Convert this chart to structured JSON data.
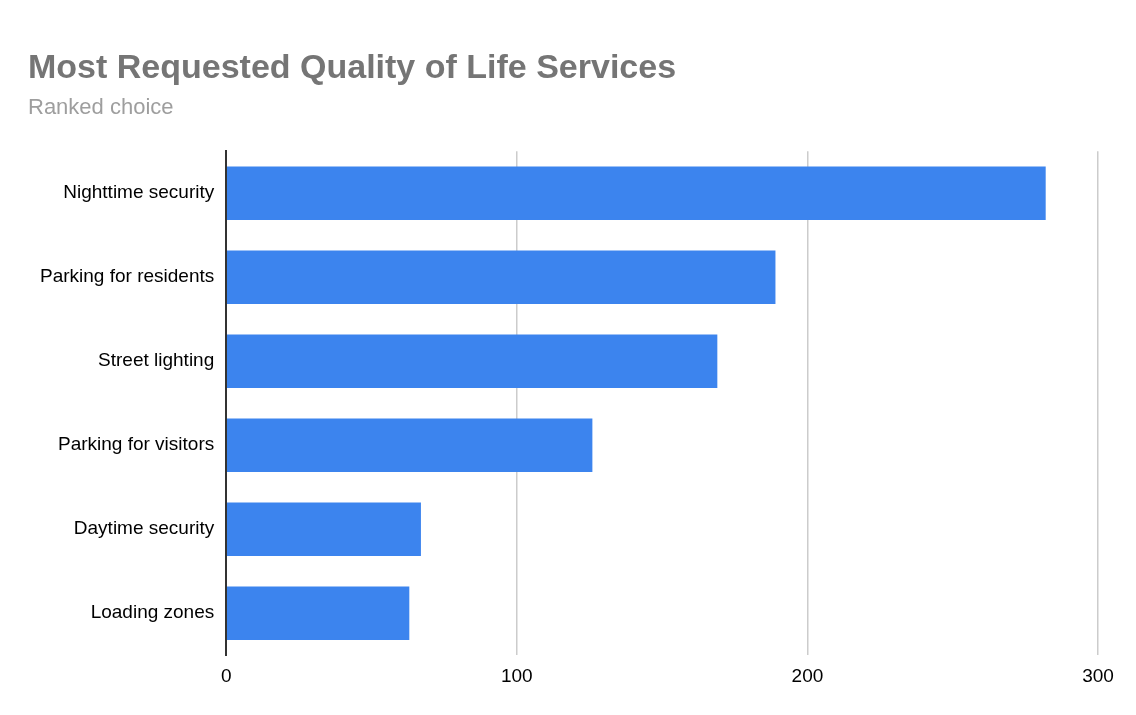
{
  "chart_data": {
    "type": "bar",
    "title": "Most Requested Quality of Life Services",
    "subtitle": "Ranked choice",
    "orientation": "horizontal",
    "categories": [
      "Nighttime security",
      "Parking for residents",
      "Street lighting",
      "Parking for visitors",
      "Daytime security",
      "Loading zones"
    ],
    "values": [
      282,
      189,
      169,
      126,
      67,
      63
    ],
    "color": "#3c84ee",
    "xlim": [
      0,
      300
    ],
    "xticks": [
      0,
      100,
      200,
      300
    ],
    "grid": "x",
    "legend": false
  }
}
